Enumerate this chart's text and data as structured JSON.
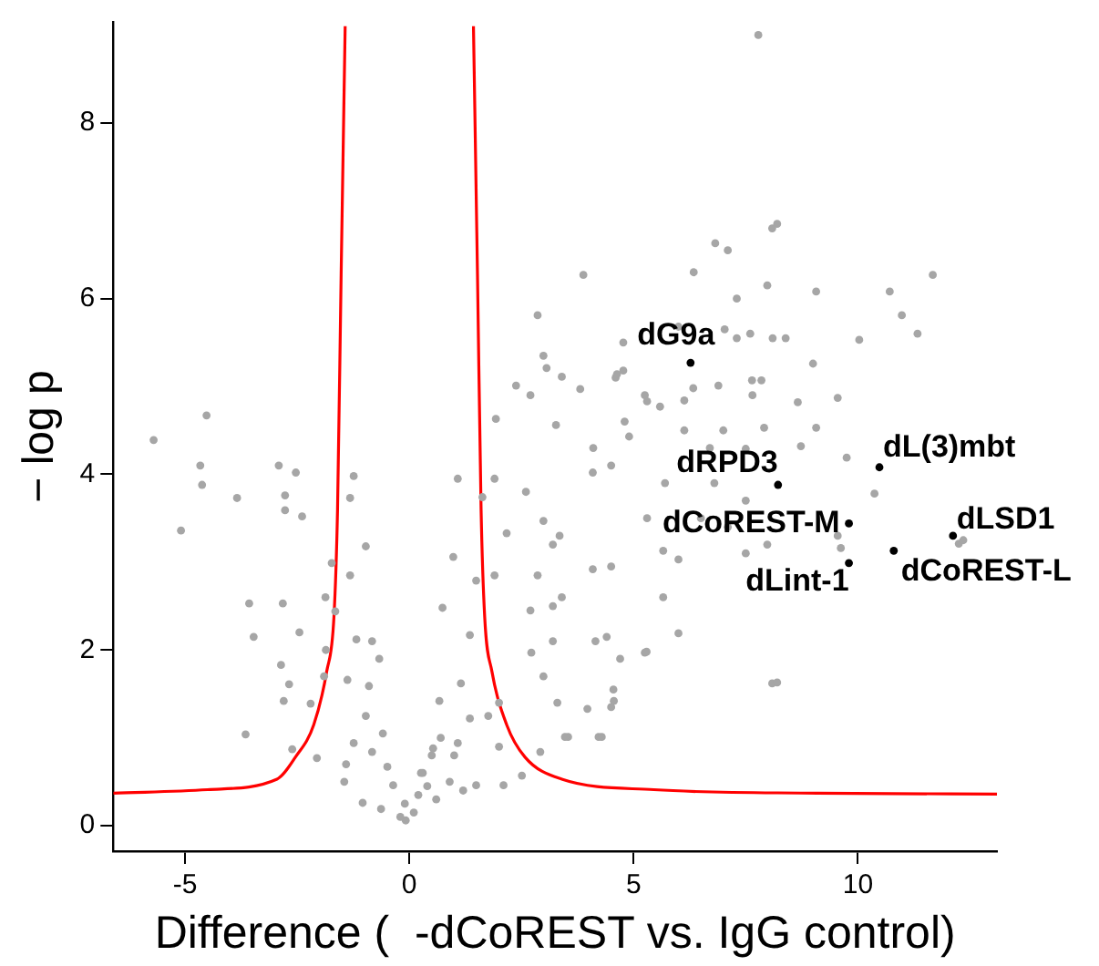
{
  "chart_data": {
    "type": "scatter",
    "xlabel": "Difference (  -dCoREST vs. IgG control)",
    "ylabel": "− log p",
    "xlim": [
      -6.6,
      13.1
    ],
    "ylim": [
      -0.29,
      9.15
    ],
    "xticks": [
      -5,
      0,
      5,
      10
    ],
    "yticks": [
      0,
      2,
      4,
      6,
      8
    ],
    "grid": false,
    "legend": false,
    "marker": "circle",
    "series": [
      {
        "type": "scatter",
        "color": "#a6a6a6",
        "x": [
          -5.7,
          -4.52,
          -4.66,
          -4.62,
          -5.09,
          -3.84,
          -2.91,
          -2.53,
          -2.77,
          -2.39,
          -2.77,
          -3.57,
          -3.47,
          -2.82,
          -2.45,
          -2.86,
          -3.65,
          -2.68,
          -2.8,
          -2.2,
          -2.61,
          -2.06,
          -1.73,
          -1.32,
          -1.24,
          -1.32,
          -0.97,
          -1.87,
          -1.65,
          -1.86,
          -1.9,
          -1.18,
          -0.83,
          -1.38,
          -0.9,
          -0.67,
          -0.97,
          -0.59,
          -1.24,
          -1.41,
          -1.45,
          -0.83,
          -0.49,
          -1.04,
          -0.63,
          -0.36,
          -0.08,
          0.1,
          -0.1,
          0.2,
          0.3,
          0.5,
          0.7,
          0.4,
          -0.2,
          0.6,
          0.9,
          1.2,
          1.0,
          0.26,
          0.53,
          0.67,
          0.74,
          1.08,
          0.98,
          1.35,
          1.15,
          1.08,
          1.49,
          2.1,
          2.51,
          2.0,
          2.92,
          1.35,
          1.76,
          2.0,
          1.49,
          1.9,
          2.17,
          1.63,
          1.9,
          1.93,
          2.38,
          2.86,
          2.99,
          3.4,
          3.88,
          2.7,
          3.27,
          2.6,
          2.99,
          3.2,
          3.35,
          2.86,
          2.7,
          3.2,
          3.4,
          3.2,
          2.72,
          2.99,
          3.3,
          3.54,
          4.22,
          3.97,
          4.5,
          4.55,
          4.15,
          4.4,
          4.09,
          4.5,
          4.7,
          5.25,
          4.09,
          4.5,
          4.9,
          4.8,
          4.1,
          3.81,
          4.77,
          4.77,
          4.6,
          5.25,
          8.09,
          8.2,
          6.82,
          7.1,
          6.34,
          7.98,
          7.3,
          9.07,
          10.71,
          11.67,
          10.98,
          11.33,
          10.03,
          9.0,
          3.06,
          4.63,
          6.0,
          7.03,
          7.3,
          7.6,
          8.1,
          8.39,
          7.64,
          7.85,
          6.89,
          6.33,
          9.55,
          8.66,
          7.65,
          6.13,
          5.59,
          5.3,
          9.07,
          7.91,
          8.73,
          9.75,
          7.5,
          7.0,
          6.13,
          6.7,
          10.37,
          7.5,
          6.8,
          5.7,
          5.66,
          6.5,
          5.3,
          7.1,
          7.98,
          7.5,
          6.0,
          5.66,
          6.0,
          5.29,
          4.56,
          4.29,
          3.47,
          8.09,
          8.2,
          9.62,
          9.55,
          12.25,
          12.35,
          7.78
        ],
        "values": [
          4.39,
          4.67,
          4.1,
          3.88,
          3.36,
          3.73,
          4.1,
          4.02,
          3.76,
          3.52,
          3.59,
          2.53,
          2.15,
          2.53,
          2.2,
          1.83,
          1.04,
          1.61,
          1.42,
          1.39,
          0.87,
          0.77,
          2.99,
          2.85,
          3.98,
          3.73,
          3.18,
          2.6,
          2.44,
          2.0,
          1.7,
          2.12,
          2.1,
          1.66,
          1.59,
          1.9,
          1.25,
          1.05,
          0.94,
          0.7,
          0.5,
          0.84,
          0.67,
          0.26,
          0.19,
          0.46,
          0.06,
          0.15,
          0.25,
          0.35,
          0.6,
          0.8,
          1.0,
          0.45,
          0.1,
          0.3,
          0.5,
          0.4,
          0.8,
          0.6,
          0.88,
          1.42,
          2.48,
          3.95,
          3.06,
          2.17,
          1.62,
          0.94,
          0.46,
          0.46,
          0.57,
          0.9,
          0.84,
          1.22,
          1.25,
          1.4,
          2.79,
          2.85,
          3.33,
          3.74,
          3.95,
          4.63,
          5.01,
          5.81,
          5.35,
          5.11,
          6.27,
          4.9,
          4.56,
          3.8,
          3.47,
          3.2,
          3.3,
          2.85,
          2.45,
          2.5,
          2.6,
          2.1,
          1.97,
          1.7,
          1.4,
          1.01,
          1.01,
          1.33,
          1.35,
          1.55,
          2.1,
          2.15,
          2.92,
          2.95,
          1.9,
          1.97,
          4.02,
          4.1,
          4.43,
          4.6,
          4.3,
          4.97,
          5.18,
          5.5,
          5.1,
          4.9,
          6.8,
          6.85,
          6.63,
          6.55,
          6.3,
          6.15,
          6.0,
          6.08,
          6.08,
          6.27,
          5.81,
          5.6,
          5.53,
          5.26,
          5.21,
          5.14,
          5.68,
          5.65,
          5.55,
          5.6,
          5.55,
          5.55,
          5.07,
          5.07,
          5.01,
          4.98,
          4.87,
          4.82,
          4.9,
          4.84,
          4.77,
          4.83,
          4.53,
          4.53,
          4.32,
          4.19,
          4.29,
          4.5,
          4.5,
          4.3,
          3.78,
          3.7,
          3.9,
          3.9,
          3.13,
          3.5,
          3.5,
          3.4,
          3.2,
          3.1,
          3.03,
          2.6,
          2.19,
          1.98,
          1.42,
          1.01,
          1.01,
          1.62,
          1.63,
          3.16,
          3.3,
          3.21,
          3.25,
          9.0
        ]
      },
      {
        "type": "scatter",
        "color": "#000000",
        "x": [
          6.27,
          8.22,
          9.8,
          9.8,
          10.48,
          12.12,
          10.8
        ],
        "values": [
          5.27,
          3.88,
          3.44,
          2.99,
          4.08,
          3.3,
          3.13
        ]
      },
      {
        "type": "line",
        "color": "#ff0000",
        "marker": "none",
        "x": [
          -6.6,
          -4.5,
          -2.95,
          -2.54,
          -2.13,
          -1.84,
          -1.68,
          -1.6,
          -1.52,
          -1.43
        ],
        "values": [
          0.37,
          0.41,
          0.53,
          0.78,
          1.15,
          1.76,
          2.38,
          3.6,
          6.27,
          9.1
        ]
      },
      {
        "type": "line",
        "color": "#ff0000",
        "marker": "none",
        "x": [
          1.43,
          1.52,
          1.6,
          1.68,
          1.84,
          2.17,
          2.58,
          3.4,
          5.45,
          9.1,
          13.1
        ],
        "values": [
          9.1,
          6.27,
          3.6,
          2.38,
          1.76,
          1.15,
          0.78,
          0.53,
          0.41,
          0.37,
          0.36
        ]
      }
    ],
    "annotations": [
      {
        "text": "dG9a",
        "x": 6.27,
        "y": 5.27
      },
      {
        "text": "dRPD3",
        "x": 8.22,
        "y": 3.88
      },
      {
        "text": "dCoREST-M",
        "x": 9.8,
        "y": 3.44
      },
      {
        "text": "dLint-1",
        "x": 9.8,
        "y": 2.99
      },
      {
        "text": "dL(3)mbt",
        "x": 10.48,
        "y": 4.08
      },
      {
        "text": "dLSD1",
        "x": 12.12,
        "y": 3.3
      },
      {
        "text": "dCoREST-L",
        "x": 10.8,
        "y": 3.13
      }
    ]
  }
}
